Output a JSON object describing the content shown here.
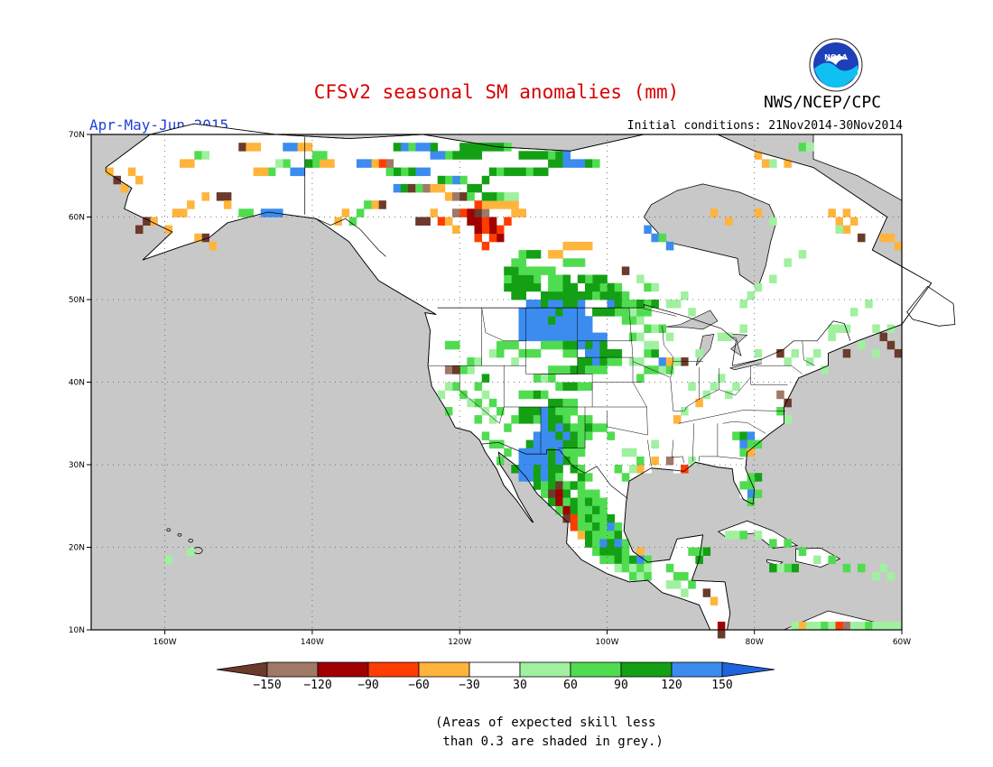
{
  "title": "CFSv2 seasonal SM anomalies (mm)",
  "org": "NWS/NCEP/CPC",
  "logo_text": "NOAA",
  "season": "Apr-May-Jun 2015",
  "initial_conditions": "Initial conditions: 21Nov2014-30Nov2014",
  "map": {
    "lat_labels": [
      "70N",
      "60N",
      "50N",
      "40N",
      "30N",
      "20N",
      "10N"
    ],
    "lon_labels": [
      "160W",
      "140W",
      "120W",
      "100W",
      "80W",
      "60W"
    ],
    "lon_range": [
      -170,
      -60
    ],
    "lat_range": [
      10,
      70
    ],
    "grid": "dotted",
    "colors": {
      "ocean_unskilled": "#c8c8c8",
      "land_neutral": "#ffffff",
      "coast": "#000000"
    }
  },
  "colorbar": {
    "labels": [
      "-150",
      "-120",
      "-90",
      "-60",
      "-30",
      "30",
      "60",
      "90",
      "120",
      "150"
    ],
    "colors": [
      "#6b3a2a",
      "#a07868",
      "#a00000",
      "#ff3c00",
      "#ffb43c",
      "#ffffff",
      "#a0f0a0",
      "#50dc50",
      "#14a014",
      "#3c8cf0",
      "#1e64dc"
    ]
  },
  "note": "(Areas of expected skill less\n than 0.3 are shaded in grey.)"
}
